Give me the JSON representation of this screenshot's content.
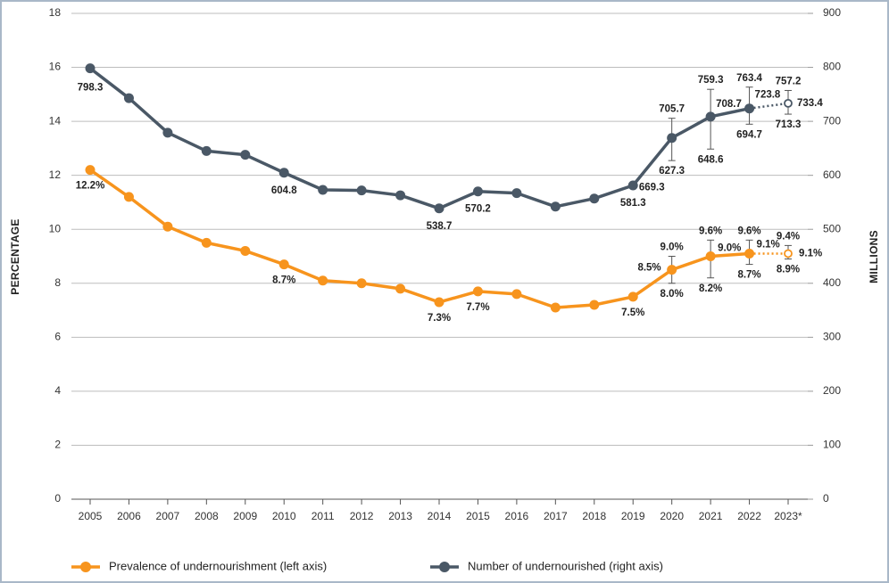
{
  "chart_data": {
    "type": "line",
    "y_label": "PERCENTAGE",
    "y2_label": "MILLIONS",
    "categories": [
      "2005",
      "2006",
      "2007",
      "2008",
      "2009",
      "2010",
      "2011",
      "2012",
      "2013",
      "2014",
      "2015",
      "2016",
      "2017",
      "2018",
      "2019",
      "2020",
      "2021",
      "2022",
      "2023*"
    ],
    "ylim": [
      0,
      18
    ],
    "yticks": [
      0,
      2,
      4,
      6,
      8,
      10,
      12,
      14,
      16,
      18
    ],
    "y2lim": [
      0,
      900
    ],
    "y2ticks": [
      0,
      100,
      200,
      300,
      400,
      500,
      600,
      700,
      800,
      900
    ],
    "grid": true,
    "legend": "bottom",
    "dotted_last_segment": true,
    "series": [
      {
        "name": "Prevalence of undernourishment (left axis)",
        "color": "#f7941d",
        "axis": "y",
        "values": [
          12.2,
          11.2,
          10.1,
          9.5,
          9.2,
          8.7,
          8.1,
          8.0,
          7.8,
          7.3,
          7.7,
          7.6,
          7.1,
          7.2,
          7.5,
          8.5,
          9.0,
          9.1,
          9.1
        ],
        "value_labels": [
          "12.2%",
          null,
          null,
          null,
          null,
          "8.7%",
          null,
          null,
          null,
          "7.3%",
          "7.7%",
          null,
          null,
          null,
          "7.5%",
          "8.5%",
          "9.0%",
          "9.1%",
          "9.1%"
        ],
        "lower": [
          null,
          null,
          null,
          null,
          null,
          null,
          null,
          null,
          null,
          null,
          null,
          null,
          null,
          null,
          null,
          8.0,
          8.2,
          8.7,
          8.9
        ],
        "upper": [
          null,
          null,
          null,
          null,
          null,
          null,
          null,
          null,
          null,
          null,
          null,
          null,
          null,
          null,
          null,
          9.0,
          9.6,
          9.6,
          9.4
        ],
        "lower_labels": [
          null,
          null,
          null,
          null,
          null,
          null,
          null,
          null,
          null,
          null,
          null,
          null,
          null,
          null,
          null,
          "8.0%",
          "8.2%",
          "8.7%",
          "8.9%"
        ],
        "upper_labels": [
          null,
          null,
          null,
          null,
          null,
          null,
          null,
          null,
          null,
          null,
          null,
          null,
          null,
          null,
          null,
          "9.0%",
          "9.6%",
          "9.6%",
          "9.4%"
        ]
      },
      {
        "name": "Number of undernourished (right axis)",
        "color": "#4a5866",
        "axis": "y2",
        "values": [
          798.3,
          743,
          679,
          645,
          638,
          604.8,
          573,
          572,
          563,
          538.7,
          570.2,
          567,
          542,
          557,
          581.3,
          669.3,
          708.7,
          723.8,
          733.4
        ],
        "value_labels": [
          "798.3",
          null,
          null,
          null,
          null,
          "604.8",
          null,
          null,
          null,
          "538.7",
          "570.2",
          null,
          null,
          null,
          "581.3",
          "669.3",
          "708.7",
          "723.8",
          "733.4"
        ],
        "lower": [
          null,
          null,
          null,
          null,
          null,
          null,
          null,
          null,
          null,
          null,
          null,
          null,
          null,
          null,
          null,
          627.3,
          648.6,
          694.7,
          713.3
        ],
        "upper": [
          null,
          null,
          null,
          null,
          null,
          null,
          null,
          null,
          null,
          null,
          null,
          null,
          null,
          null,
          null,
          705.7,
          759.3,
          763.4,
          757.2
        ]
      }
    ]
  }
}
